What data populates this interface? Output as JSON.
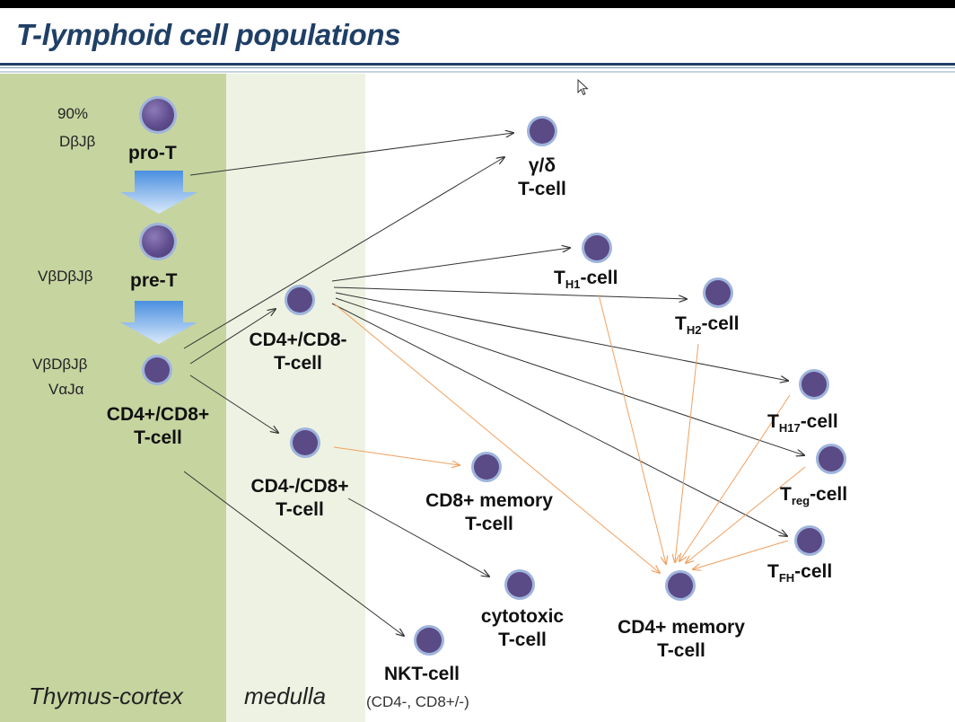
{
  "title": "T-lymphoid cell populations",
  "zones": {
    "cortex": "Thymus-cortex",
    "medulla": "medulla"
  },
  "left_notes": {
    "n1_pct": "90%",
    "n1_genes": "DβJβ",
    "n2_genes": "VβDβJβ",
    "n3_genes_a": "VβDβJβ",
    "n3_genes_b": "VαJα"
  },
  "cells": {
    "pro_t": "pro-T",
    "pre_t": "pre-T",
    "dp_a": "CD4+/CD8+",
    "dp_b": "T-cell",
    "cd4_a": "CD4+/CD8-",
    "cd4_b": "T-cell",
    "cd8_a": "CD4-/CD8+",
    "cd8_b": "T-cell",
    "gd_a": "γ/δ",
    "gd_b": "T-cell",
    "th1_main": "T",
    "th1_sub": "H1",
    "th1_suffix": "-cell",
    "th2_main": "T",
    "th2_sub": "H2",
    "th2_suffix": "-cell",
    "th17_main": "T",
    "th17_sub": "H17",
    "th17_suffix": "-cell",
    "treg_main": "T",
    "treg_sub": "reg",
    "treg_suffix": "-cell",
    "tfh_main": "T",
    "tfh_sub": "FH",
    "tfh_suffix": "-cell",
    "cd8mem_a": "CD8+ memory",
    "cd8mem_b": "T-cell",
    "cyto_a": "cytotoxic",
    "cyto_b": "T-cell",
    "cd4mem_a": "CD4+ memory",
    "cd4mem_b": "T-cell",
    "nkt_a": "NKT-cell",
    "nkt_b": "(CD4-, CD8+/-)"
  },
  "colors": {
    "title": "#1f3f66",
    "cortex": "#c6d4a0",
    "medulla": "#eef2e2",
    "cell": "#5a4a86",
    "cell_ring": "#9fb4dc",
    "arrow_dark": "#333333",
    "arrow_orange": "#f0a060"
  }
}
